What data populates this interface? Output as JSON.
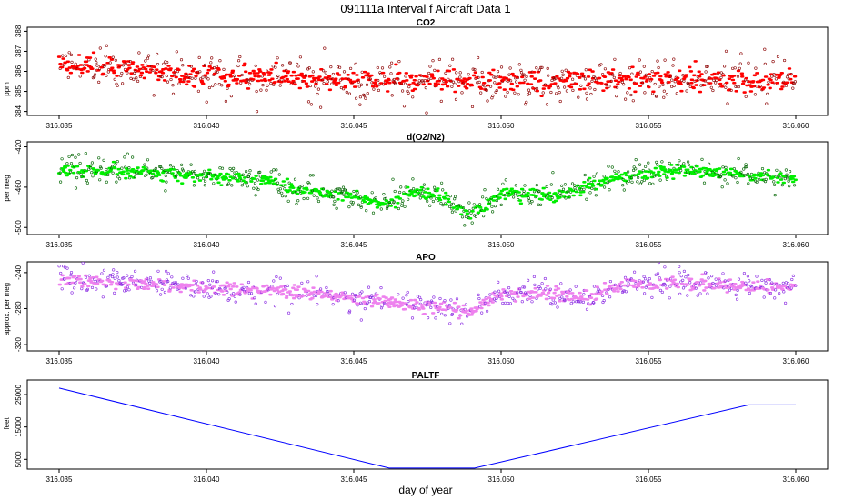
{
  "figure": {
    "title": "091111a   Interval f Aircraft Data 1",
    "xlabel": "day of year"
  },
  "colors": {
    "co2_fill": "#ff0000",
    "co2_edge": "#8b0000",
    "o2_fill": "#00ee00",
    "o2_edge": "#006400",
    "apo_fill": "#ee82ee",
    "apo_edge": "#8a2be2",
    "paltf_line": "#0000ff"
  },
  "chart_data": [
    {
      "type": "scatter",
      "title": "CO2",
      "ylabel": "ppm",
      "xlim": [
        316.035,
        316.06
      ],
      "ylim": [
        383.8,
        388.2
      ],
      "xticks": [
        "316.035",
        "316.040",
        "316.045",
        "316.050",
        "316.055",
        "316.060"
      ],
      "yticks": [
        "384",
        "385",
        "386",
        "387",
        "388"
      ],
      "n_points": 1100,
      "trend": [
        [
          316.035,
          386.4
        ],
        [
          316.04,
          385.8
        ],
        [
          316.045,
          385.6
        ],
        [
          316.05,
          385.5
        ],
        [
          316.055,
          385.6
        ],
        [
          316.06,
          385.5
        ]
      ],
      "scatter_sd": 0.5,
      "grid": false
    },
    {
      "type": "scatter",
      "title": "d(O2/N2)",
      "ylabel": "per meg",
      "xlim": [
        316.035,
        316.06
      ],
      "ylim": [
        -507,
        -415
      ],
      "xticks": [
        "316.035",
        "316.040",
        "316.045",
        "316.050",
        "316.055",
        "316.060"
      ],
      "yticks": [
        "-420",
        "-460",
        "-500"
      ],
      "n_points": 1100,
      "trend": [
        [
          316.035,
          -443
        ],
        [
          316.038,
          -445
        ],
        [
          316.04,
          -449
        ],
        [
          316.042,
          -452
        ],
        [
          316.043,
          -463
        ],
        [
          316.045,
          -469
        ],
        [
          316.046,
          -478
        ],
        [
          316.047,
          -466
        ],
        [
          316.048,
          -470
        ],
        [
          316.049,
          -488
        ],
        [
          316.05,
          -466
        ],
        [
          316.052,
          -468
        ],
        [
          316.054,
          -450
        ],
        [
          316.056,
          -443
        ],
        [
          316.058,
          -447
        ],
        [
          316.06,
          -453
        ]
      ],
      "scatter_sd": 6,
      "grid": false
    },
    {
      "type": "scatter",
      "title": "APO",
      "ylabel": "approx. per meg",
      "xlim": [
        316.035,
        316.06
      ],
      "ylim": [
        -327,
        -228
      ],
      "xticks": [
        "316.035",
        "316.040",
        "316.045",
        "316.050",
        "316.055",
        "316.060"
      ],
      "yticks": [
        "-240",
        "-280",
        "-320"
      ],
      "n_points": 1100,
      "trend": [
        [
          316.035,
          -248
        ],
        [
          316.037,
          -250
        ],
        [
          316.038,
          -252
        ],
        [
          316.04,
          -256
        ],
        [
          316.042,
          -260
        ],
        [
          316.044,
          -263
        ],
        [
          316.045,
          -268
        ],
        [
          316.047,
          -276
        ],
        [
          316.048,
          -280
        ],
        [
          316.049,
          -284
        ],
        [
          316.05,
          -264
        ],
        [
          316.052,
          -264
        ],
        [
          316.053,
          -268
        ],
        [
          316.054,
          -254
        ],
        [
          316.056,
          -252
        ],
        [
          316.058,
          -256
        ],
        [
          316.06,
          -255
        ]
      ],
      "scatter_sd": 7,
      "grid": false
    },
    {
      "type": "line",
      "title": "PALTF",
      "ylabel": "feet",
      "xlim": [
        316.035,
        316.06
      ],
      "ylim": [
        2000,
        29500
      ],
      "xticks": [
        "316.035",
        "316.040",
        "316.045",
        "316.050",
        "316.055",
        "316.060"
      ],
      "yticks": [
        "5000",
        "15000",
        "25000"
      ],
      "x": [
        316.035,
        316.0462,
        316.0491,
        316.0584,
        316.06
      ],
      "y": [
        27000,
        2300,
        2300,
        21800,
        21800
      ],
      "grid": false
    }
  ]
}
